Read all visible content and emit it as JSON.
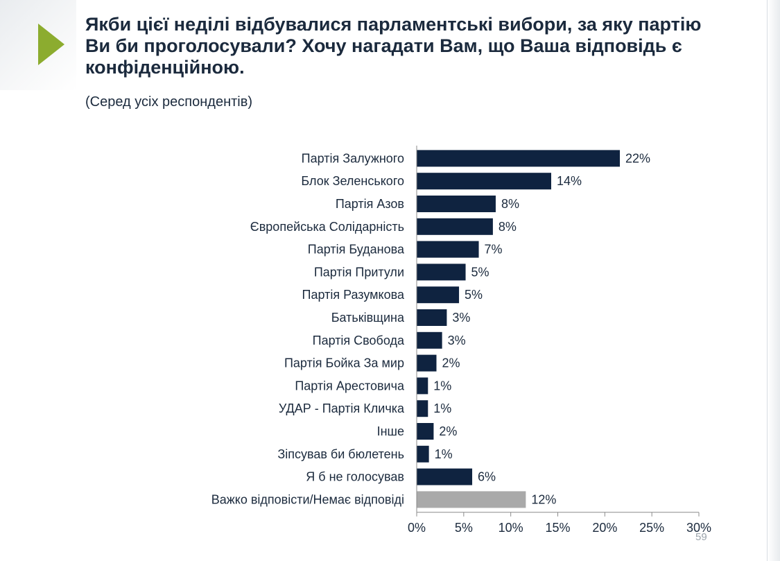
{
  "title": "Якби цієї неділі відбувалися парламентські вибори, за яку партію Ви би проголосували? Хочу нагадати Вам, що Ваша відповідь є конфіденційною.",
  "subtitle": "(Серед усіх респондентів)",
  "page_number": "59",
  "colors": {
    "bar_primary": "#0f2340",
    "bar_secondary": "#a9a9a9",
    "accent_arrow": "#8cac2f",
    "text": "#1b2a3d"
  },
  "chart_data": {
    "type": "bar",
    "orientation": "horizontal",
    "categories": [
      "Партія Залужного",
      "Блок Зеленського",
      "Партія Азов",
      "Європейська Солідарність",
      "Партія Буданова",
      "Партія Притули",
      "Партія Разумкова",
      "Батьківщина",
      "Партія Свобода",
      "Партія Бойка За мир",
      "Партія Арестовича",
      "УДАР - Партія Кличка",
      "Інше",
      "Зіпсував би бюлетень",
      "Я б не голосував",
      "Важко відповісти/Немає відповіді"
    ],
    "values": [
      21.6,
      14.3,
      8.4,
      8.1,
      6.6,
      5.2,
      4.5,
      3.2,
      2.7,
      2.1,
      1.2,
      1.2,
      1.8,
      1.3,
      5.9,
      11.6
    ],
    "value_labels": [
      "22%",
      "14%",
      "8%",
      "8%",
      "7%",
      "5%",
      "5%",
      "3%",
      "3%",
      "2%",
      "1%",
      "1%",
      "2%",
      "1%",
      "6%",
      "12%"
    ],
    "highlight_last": true,
    "xlim": [
      0,
      30
    ],
    "xticks": [
      0,
      5,
      10,
      15,
      20,
      25,
      30
    ],
    "xtick_labels": [
      "0%",
      "5%",
      "10%",
      "15%",
      "20%",
      "25%",
      "30%"
    ],
    "grid": false,
    "legend": "none"
  }
}
